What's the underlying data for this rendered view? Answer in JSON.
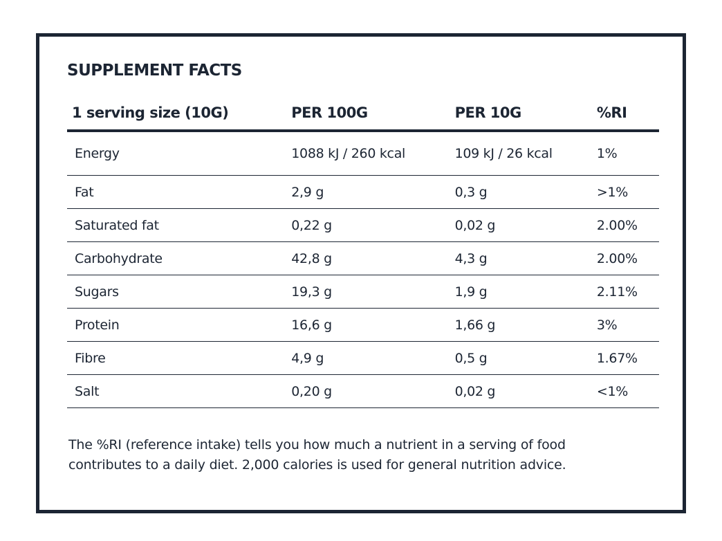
{
  "title": "SUPPLEMENT FACTS",
  "table": {
    "header": [
      "1 serving size (10G)",
      "PER 100G",
      "PER 10G",
      "%RI"
    ],
    "rows": [
      [
        "Energy",
        "1088 kJ / 260 kcal",
        "109 kJ / 26 kcal",
        "1%"
      ],
      [
        "Fat",
        "2,9 g",
        "0,3 g",
        ">1%"
      ],
      [
        "Saturated fat",
        "0,22 g",
        "0,02 g",
        "2.00%"
      ],
      [
        "Carbohydrate",
        "42,8 g",
        "4,3 g",
        "2.00%"
      ],
      [
        "Sugars",
        "19,3 g",
        "1,9 g",
        "2.11%"
      ],
      [
        "Protein",
        "16,6 g",
        "1,66 g",
        "3%"
      ],
      [
        "Fibre",
        "4,9 g",
        "0,5 g",
        "1.67%"
      ],
      [
        "Salt",
        "0,20 g",
        "0,02 g",
        "<1%"
      ]
    ]
  },
  "footnote": "The %RI (reference intake) tells you how much a nutrient in a serving of food contributes to a daily diet. 2,000 calories is used for general nutrition advice."
}
